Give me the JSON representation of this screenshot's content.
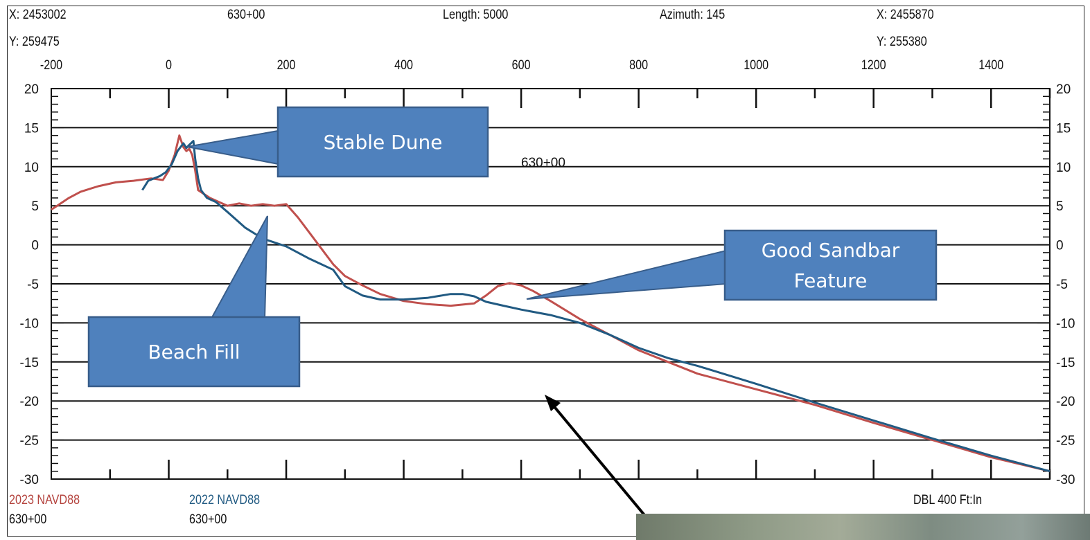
{
  "header": {
    "start_x": "X: 2453002",
    "start_y": "Y: 259475",
    "station": "630+00",
    "length": "Length: 5000",
    "azimuth": "Azimuth: 145",
    "end_x": "X: 2455870",
    "end_y": "Y: 255380"
  },
  "legend": {
    "series_2023_label": "2023 NAVD88",
    "series_2023_station": "630+00",
    "series_2022_label": "2022 NAVD88",
    "series_2022_station": "630+00",
    "scale": "DBL 400 Ft:In"
  },
  "chart_data": {
    "type": "line",
    "title": "",
    "inner_label": "630+00",
    "xlabel": "",
    "ylabel": "",
    "xlim": [
      -200,
      1500
    ],
    "ylim": [
      -30,
      20
    ],
    "x_ticks": [
      -200,
      0,
      200,
      400,
      600,
      800,
      1000,
      1200,
      1400
    ],
    "y_ticks": [
      20,
      15,
      10,
      5,
      0,
      -5,
      -10,
      -15,
      -20,
      -25,
      -30
    ],
    "grid": "horizontal",
    "series": [
      {
        "name": "2023 NAVD88",
        "color": "#c0504d",
        "x": [
          -200,
          -190,
          -170,
          -150,
          -120,
          -90,
          -60,
          -30,
          -10,
          0,
          10,
          18,
          25,
          30,
          35,
          40,
          45,
          50,
          60,
          70,
          85,
          100,
          120,
          140,
          160,
          180,
          200,
          220,
          240,
          260,
          280,
          300,
          330,
          360,
          400,
          440,
          480,
          520,
          540,
          560,
          580,
          600,
          620,
          650,
          700,
          750,
          800,
          850,
          900,
          1000,
          1100,
          1200,
          1300,
          1400,
          1500
        ],
        "y": [
          4.5,
          5,
          6,
          6.8,
          7.5,
          8,
          8.2,
          8.5,
          8.3,
          9.5,
          11.5,
          14,
          12.5,
          12,
          12.3,
          11.5,
          9.5,
          7,
          6.5,
          6,
          5.5,
          5,
          5.3,
          5,
          5.2,
          5,
          5.2,
          3.5,
          1.5,
          -0.5,
          -2.5,
          -4,
          -5.2,
          -6.3,
          -7.2,
          -7.6,
          -7.8,
          -7.5,
          -6.5,
          -5.3,
          -4.9,
          -5.2,
          -5.9,
          -7.2,
          -9.5,
          -11.5,
          -13.5,
          -15,
          -16.5,
          -18.5,
          -20.5,
          -22.8,
          -25,
          -27.2,
          -29
        ]
      },
      {
        "name": "2022 NAVD88",
        "color": "#215a82",
        "x": [
          -45,
          -35,
          -25,
          -15,
          -5,
          5,
          15,
          25,
          30,
          35,
          42,
          45,
          50,
          55,
          65,
          80,
          100,
          130,
          160,
          200,
          240,
          280,
          300,
          330,
          360,
          400,
          440,
          480,
          500,
          520,
          540,
          570,
          600,
          650,
          700,
          750,
          800,
          850,
          900,
          1000,
          1100,
          1200,
          1300,
          1400,
          1500
        ],
        "y": [
          7,
          8.2,
          8.5,
          8.8,
          9.3,
          10.3,
          12,
          13,
          12.4,
          12.8,
          13.3,
          11,
          8.5,
          7,
          6,
          5.5,
          4.2,
          2.2,
          0.8,
          -0.2,
          -1.8,
          -3.2,
          -5.3,
          -6.5,
          -7,
          -7,
          -6.8,
          -6.3,
          -6.3,
          -6.6,
          -7.3,
          -7.8,
          -8.3,
          -9,
          -10,
          -11.5,
          -13.2,
          -14.5,
          -15.5,
          -17.8,
          -20.2,
          -22.5,
          -24.8,
          -27,
          -29
        ]
      }
    ],
    "annotations": [
      {
        "text": "Stable Dune",
        "points_to": [
          80,
          11.5
        ]
      },
      {
        "text": "Beach Fill",
        "points_to": [
          180,
          4.5
        ]
      },
      {
        "text": "Good Sandbar\nFeature",
        "points_to": [
          610,
          -7
        ]
      }
    ]
  }
}
